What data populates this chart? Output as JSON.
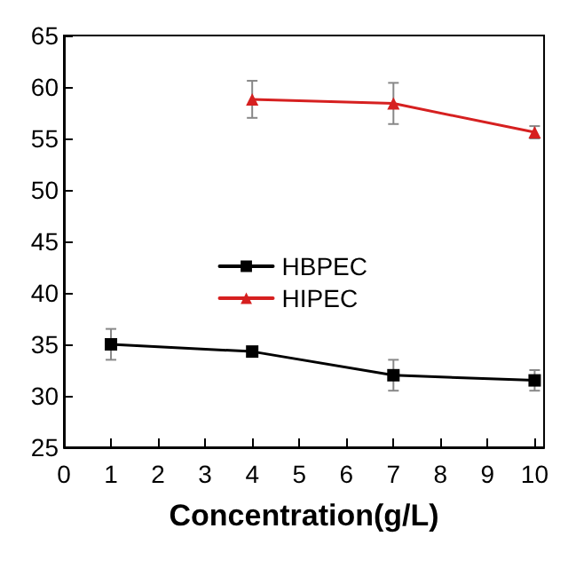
{
  "chart_data": {
    "type": "line",
    "xlabel": "Concentration(g/L)",
    "xlim": [
      0,
      10.2
    ],
    "xticks": [
      0,
      1,
      2,
      3,
      4,
      5,
      6,
      7,
      8,
      9,
      10
    ],
    "ylim": [
      25,
      65
    ],
    "yticks": [
      25,
      30,
      35,
      40,
      45,
      50,
      55,
      60,
      65
    ],
    "legend": "right",
    "grid": false,
    "series": [
      {
        "name": "HBPEC",
        "color": "#000000",
        "marker": "square",
        "x": [
          1,
          4,
          7,
          10
        ],
        "values": [
          35,
          34.3,
          32,
          31.5
        ],
        "errors": [
          1.5,
          0.4,
          1.5,
          1
        ]
      },
      {
        "name": "HIPEC",
        "color": "#d62020",
        "marker": "triangle",
        "x": [
          4,
          7,
          10
        ],
        "values": [
          58.8,
          58.4,
          55.6
        ],
        "errors": [
          1.8,
          2,
          0.6
        ]
      }
    ]
  }
}
